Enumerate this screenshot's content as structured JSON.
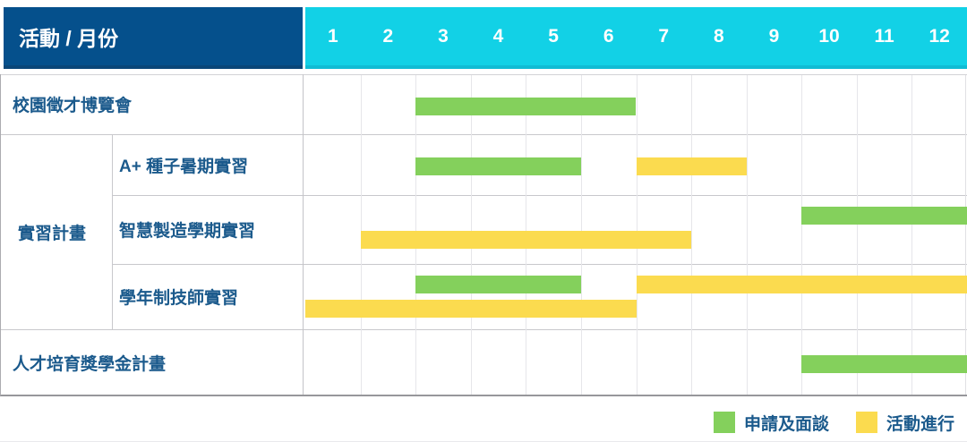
{
  "chart_data": {
    "type": "gantt",
    "title": "活動 / 月份",
    "months": [
      "1",
      "2",
      "3",
      "4",
      "5",
      "6",
      "7",
      "8",
      "9",
      "10",
      "11",
      "12"
    ],
    "x_range": [
      1,
      12
    ],
    "group_label": "實習計畫",
    "rows": [
      {
        "id": "campus-fair",
        "label": "校園徵才博覽會",
        "group": null,
        "bars": [
          {
            "color": "green",
            "from_month": 3,
            "to_month": 6,
            "band": "single"
          }
        ]
      },
      {
        "id": "aplus-seed-summer-internship",
        "label": "A+ 種子暑期實習",
        "group": "實習計畫",
        "bars": [
          {
            "color": "green",
            "from_month": 3,
            "to_month": 5,
            "band": "single"
          },
          {
            "color": "yellow",
            "from_month": 7,
            "to_month": 8,
            "band": "single"
          }
        ]
      },
      {
        "id": "smart-manufacturing-semester-internship",
        "label": "智慧製造學期實習",
        "group": "實習計畫",
        "bars": [
          {
            "color": "green",
            "from_month": 10,
            "to_month": 12,
            "band": "top"
          },
          {
            "color": "yellow",
            "from_month": 2,
            "to_month": 7,
            "band": "bottom"
          }
        ]
      },
      {
        "id": "academic-year-technician-internship",
        "label": "學年制技師實習",
        "group": "實習計畫",
        "bars": [
          {
            "color": "green",
            "from_month": 3,
            "to_month": 5,
            "band": "top"
          },
          {
            "color": "yellow",
            "from_month": 7,
            "to_month": 12,
            "band": "top"
          },
          {
            "color": "yellow",
            "from_month": 1,
            "to_month": 6,
            "band": "bottom"
          }
        ]
      },
      {
        "id": "talent-scholarship-program",
        "label": "人才培育獎學金計畫",
        "group": null,
        "bars": [
          {
            "color": "green",
            "from_month": 10,
            "to_month": 12,
            "band": "single"
          }
        ]
      }
    ],
    "legend_items": [
      {
        "key": "green",
        "label": "申請及面談"
      },
      {
        "key": "yellow",
        "label": "活動進行"
      }
    ],
    "colors": {
      "green": "#84D05C",
      "yellow": "#FBDB4F",
      "header_navy": "#05508C",
      "header_cyan": "#12D1E6",
      "label_text": "#1B5A8C"
    },
    "grid": true,
    "legend_position": "bottom-right"
  }
}
